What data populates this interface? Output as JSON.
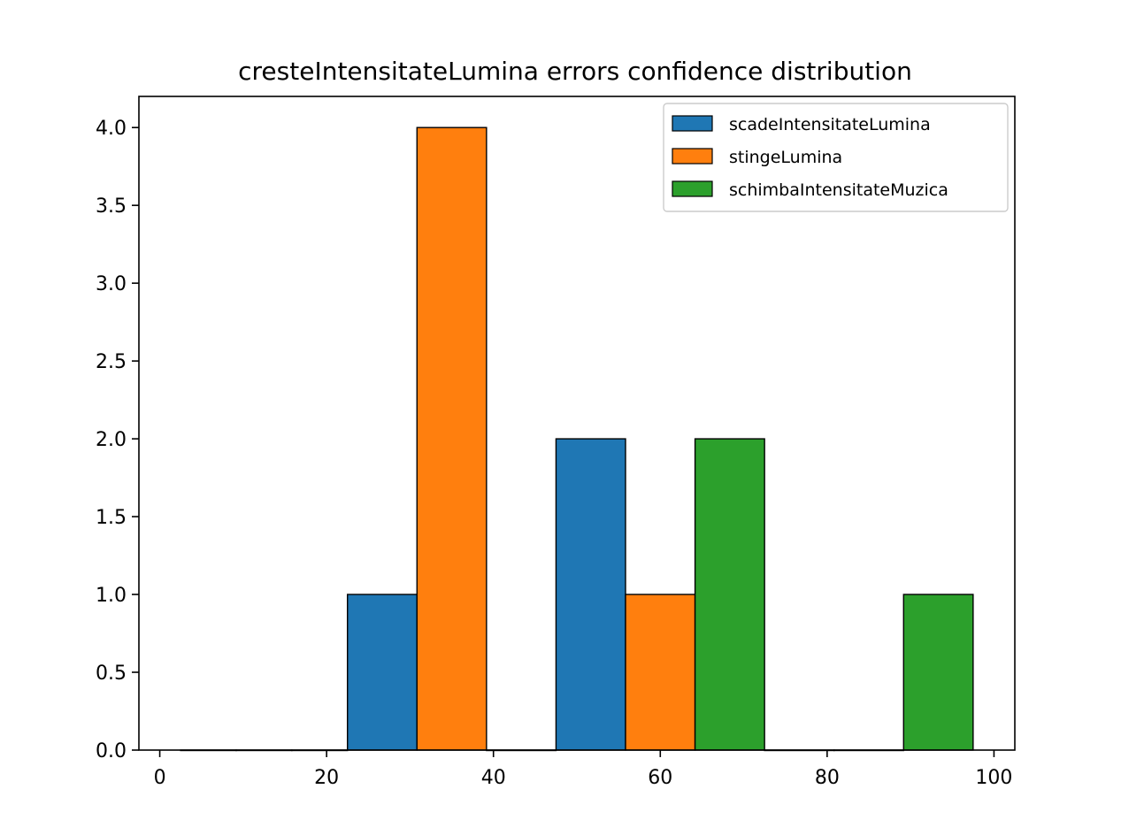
{
  "chart_data": {
    "type": "bar",
    "title": "cresteIntensitateLumina errors confidence distribution",
    "xlabel": "",
    "ylabel": "",
    "xlim": [
      -2.5,
      102.5
    ],
    "ylim": [
      0,
      4.2
    ],
    "x_ticks": [
      "0",
      "20",
      "40",
      "60",
      "80",
      "100"
    ],
    "y_ticks": [
      "0.0",
      "0.5",
      "1.0",
      "1.5",
      "2.0",
      "2.5",
      "3.0",
      "3.5",
      "4.0"
    ],
    "grid": false,
    "legend_position": "top-right",
    "bins": [
      [
        2.5,
        22.5
      ],
      [
        22.5,
        47.5
      ],
      [
        47.5,
        72.5
      ],
      [
        72.5,
        97.5
      ]
    ],
    "series": [
      {
        "name": "scadeIntensitateLumina",
        "color": "#1f77b4",
        "values": [
          0,
          1,
          2,
          0
        ]
      },
      {
        "name": "stingeLumina",
        "color": "#ff7f0e",
        "values": [
          0,
          4,
          1,
          0
        ]
      },
      {
        "name": "schimbaIntensitateMuzica",
        "color": "#2ca02c",
        "values": [
          0,
          0,
          2,
          1
        ]
      }
    ]
  }
}
